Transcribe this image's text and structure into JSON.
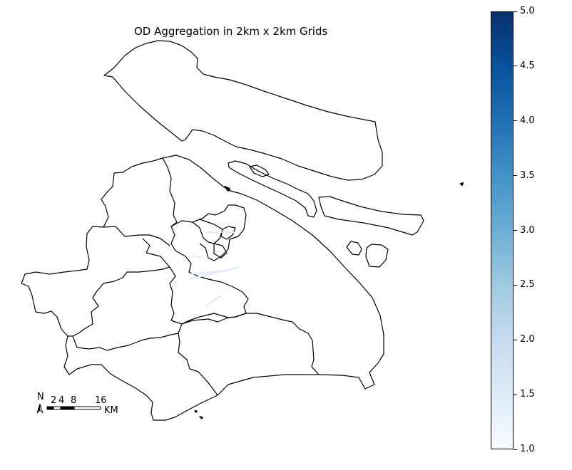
{
  "title": "OD Aggregation in 2km x 2km Grids",
  "colorbar": {
    "cmap": "Blues",
    "min": 1.0,
    "max": 5.0,
    "ticks": [
      "1.0",
      "1.5",
      "2.0",
      "2.5",
      "3.0",
      "3.5",
      "4.0",
      "4.5",
      "5.0"
    ]
  },
  "north_arrow": {
    "label": "N"
  },
  "scale_bar": {
    "labels": [
      "2",
      "4",
      "8",
      "16"
    ],
    "unit": "KM"
  },
  "colors": {
    "outline": "#000000",
    "grid_fill": "#deebf7"
  }
}
